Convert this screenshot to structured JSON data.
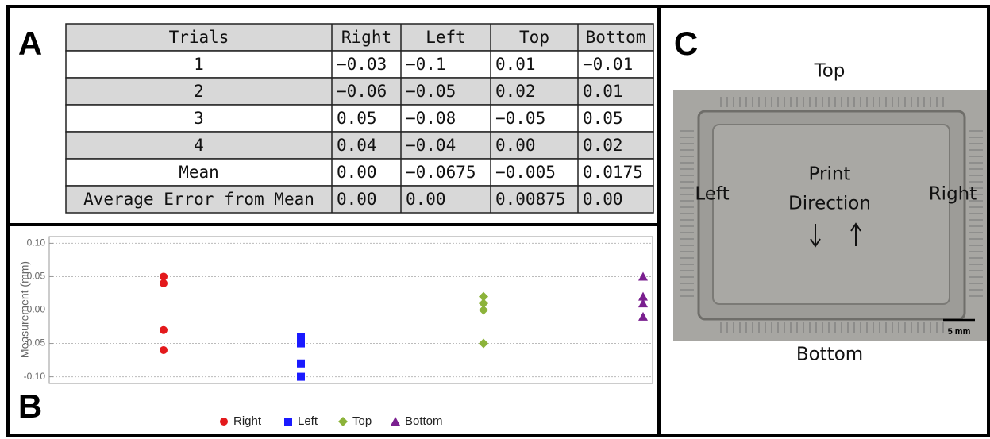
{
  "panel_labels": [
    "A",
    "B",
    "C"
  ],
  "table": {
    "header": [
      "Trials",
      "Right",
      "Left",
      "Top",
      "Bottom"
    ],
    "rows": [
      [
        "1",
        "−0.03",
        "−0.1",
        "0.01",
        "−0.01"
      ],
      [
        "2",
        "−0.06",
        "−0.05",
        "0.02",
        "0.01"
      ],
      [
        "3",
        "0.05",
        "−0.08",
        "−0.05",
        "0.05"
      ],
      [
        "4",
        "0.04",
        "−0.04",
        "0.00",
        "0.02"
      ],
      [
        "Mean",
        "0.00",
        "−0.0675",
        "−0.005",
        "0.0175"
      ],
      [
        "Average Error from Mean",
        "0.00",
        "0.00",
        "0.00875",
        "0.00"
      ]
    ]
  },
  "chart_data": {
    "type": "scatter",
    "ylabel": "Measurement (mm)",
    "series": [
      {
        "name": "Right",
        "color": "#e3191c",
        "marker": "circle",
        "values": [
          -0.03,
          -0.06,
          0.05,
          0.04
        ]
      },
      {
        "name": "Left",
        "color": "#1a1aff",
        "marker": "square",
        "values": [
          -0.1,
          -0.05,
          -0.08,
          -0.04
        ]
      },
      {
        "name": "Top",
        "color": "#8cb33a",
        "marker": "diamond",
        "values": [
          0.01,
          0.02,
          -0.05,
          0.0
        ]
      },
      {
        "name": "Bottom",
        "color": "#7a1f8f",
        "marker": "triangle",
        "values": [
          -0.01,
          0.01,
          0.05,
          0.02
        ]
      }
    ],
    "ylim": [
      -0.11,
      0.11
    ],
    "yticks": [
      {
        "value": 0.1,
        "label": "0.10"
      },
      {
        "value": 0.05,
        "label": "0.05"
      },
      {
        "value": 0,
        "label": "0.00"
      },
      {
        "value": -0.05,
        "label": "-0.05"
      },
      {
        "value": -0.1,
        "label": "-0.10"
      }
    ],
    "grid": true,
    "legend": "bottom"
  },
  "photo": {
    "top": "Top",
    "bottom": "Bottom",
    "left": "Left",
    "right": "Right",
    "center": [
      "Print",
      "Direction"
    ],
    "scale_bar": "5 mm"
  }
}
